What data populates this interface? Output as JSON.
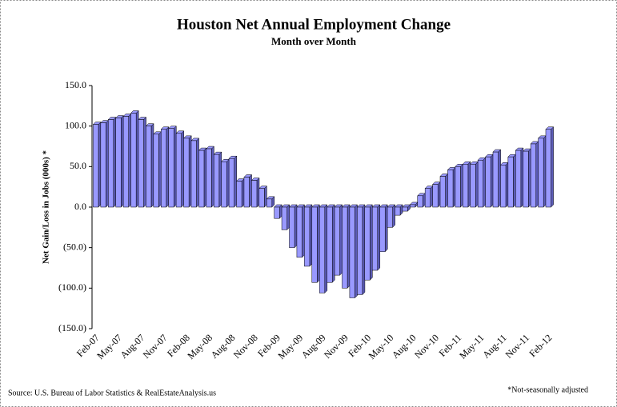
{
  "chart_data": {
    "type": "bar",
    "title": "Houston Net Annual  Employment  Change",
    "subtitle": "Month over Month",
    "y_label": "Net Gain/Loss in Jobs (000s) *",
    "source": "Source: U.S. Bureau of Labor Statistics & RealEstateAnalysis.us",
    "note": "*Not-seasonally adjusted",
    "categories": [
      "Feb-07",
      null,
      null,
      "May-07",
      null,
      null,
      "Aug-07",
      null,
      null,
      "Nov-07",
      null,
      null,
      "Feb-08",
      null,
      null,
      "May-08",
      null,
      null,
      "Aug-08",
      null,
      null,
      "Nov-08",
      null,
      null,
      "Feb-09",
      null,
      null,
      "May-09",
      null,
      null,
      "Aug-09",
      null,
      null,
      "Nov-09",
      null,
      null,
      "Feb-10",
      null,
      null,
      "May-10",
      null,
      null,
      "Aug-10",
      null,
      null,
      "Nov-10",
      null,
      null,
      "Feb-11",
      null,
      null,
      "May-11",
      null,
      null,
      "Aug-11",
      null,
      null,
      "Nov-11",
      null,
      null,
      "Feb-12"
    ],
    "values": [
      102,
      104,
      108,
      110,
      112,
      116,
      108,
      100,
      90,
      96,
      97,
      91,
      85,
      82,
      70,
      72,
      65,
      56,
      60,
      32,
      37,
      33,
      23,
      10,
      -14,
      -28,
      -50,
      -62,
      -73,
      -93,
      -106,
      -93,
      -84,
      -100,
      -112,
      -108,
      -90,
      -78,
      -55,
      -25,
      -10,
      -5,
      3,
      14,
      23,
      28,
      38,
      46,
      50,
      53,
      53,
      58,
      62,
      68,
      52,
      62,
      70,
      69,
      78,
      85,
      96
    ],
    "color": "#9999ff",
    "side_color": "#5c5cb8",
    "negative_label_color": "#cc0000",
    "ylim": [
      -150,
      150
    ],
    "yticks": [
      {
        "value": -150,
        "label": "(150.0)"
      },
      {
        "value": -100,
        "label": "(100.0)"
      },
      {
        "value": -50,
        "label": "(50.0)"
      },
      {
        "value": 0,
        "label": "0.0"
      },
      {
        "value": 50,
        "label": "50.0"
      },
      {
        "value": 100,
        "label": "100.0"
      },
      {
        "value": 150,
        "label": "150.0"
      }
    ]
  }
}
